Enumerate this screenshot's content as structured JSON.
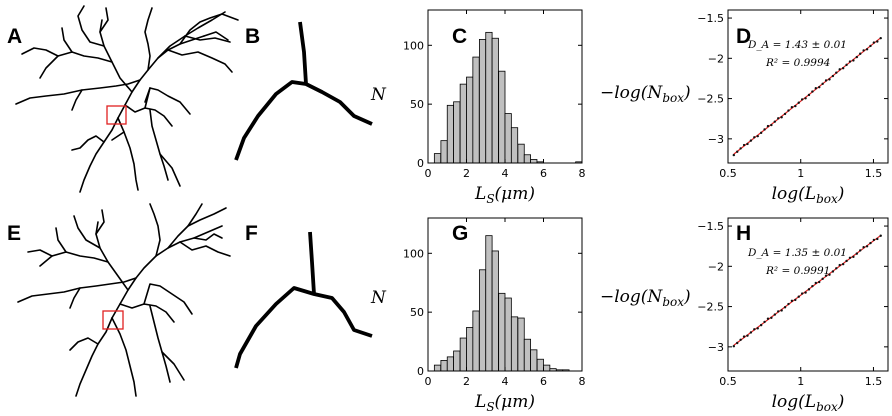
{
  "panel_letters": [
    "A",
    "B",
    "C",
    "D",
    "E",
    "F",
    "G",
    "H"
  ],
  "colors": {
    "box_outline": "#e02020",
    "bar_fill": "#c0c0c0",
    "fit_line": "#e02020",
    "points": "#111111"
  },
  "chart_data": [
    {
      "id": "C",
      "type": "bar",
      "xlabel": "L_S(μm)",
      "ylabel": "N",
      "xlim": [
        0,
        8
      ],
      "ylim": [
        0,
        130
      ],
      "xticks": [
        0,
        2,
        4,
        6,
        8
      ],
      "yticks": [
        0,
        50,
        100
      ],
      "bin_width": 0.33,
      "bin_starts": [
        0.33,
        0.67,
        1.0,
        1.33,
        1.67,
        2.0,
        2.33,
        2.67,
        3.0,
        3.33,
        3.67,
        4.0,
        4.33,
        4.67,
        5.0,
        5.33,
        5.67,
        7.67
      ],
      "values": [
        8,
        19,
        49,
        52,
        67,
        73,
        90,
        105,
        111,
        106,
        78,
        42,
        30,
        16,
        7,
        3,
        1,
        1
      ]
    },
    {
      "id": "D",
      "type": "scatter",
      "xlabel": "log(L_box)",
      "ylabel": "−log(N_box)",
      "xlim": [
        0.5,
        1.6
      ],
      "ylim": [
        -3.3,
        -1.4
      ],
      "xticks": [
        0.5,
        1,
        1.5
      ],
      "yticks": [
        -3,
        -2.5,
        -2,
        -1.5
      ],
      "annotation": {
        "line1": "D_A = 1.43 ± 0.01",
        "line2": "R² = 0.9994"
      },
      "fit": {
        "slope": 1.43,
        "x0": 0.54,
        "y0": -3.19
      },
      "x_range": [
        0.54,
        1.55
      ]
    },
    {
      "id": "G",
      "type": "bar",
      "xlabel": "L_S(μm)",
      "ylabel": "N",
      "xlim": [
        0,
        8
      ],
      "ylim": [
        0,
        130
      ],
      "xticks": [
        0,
        2,
        4,
        6,
        8
      ],
      "yticks": [
        0,
        50,
        100
      ],
      "bin_width": 0.33,
      "bin_starts": [
        0.33,
        0.67,
        1.0,
        1.33,
        1.67,
        2.0,
        2.33,
        2.67,
        3.0,
        3.33,
        3.67,
        4.0,
        4.33,
        4.67,
        5.0,
        5.33,
        5.67,
        6.0,
        6.33,
        6.67,
        7.0
      ],
      "values": [
        5,
        9,
        12,
        17,
        28,
        37,
        51,
        86,
        115,
        102,
        66,
        62,
        46,
        45,
        27,
        18,
        10,
        5,
        2,
        1,
        1
      ]
    },
    {
      "id": "H",
      "type": "scatter",
      "xlabel": "log(L_box)",
      "ylabel": "−log(N_box)",
      "xlim": [
        0.5,
        1.6
      ],
      "ylim": [
        -3.3,
        -1.4
      ],
      "xticks": [
        0.5,
        1,
        1.5
      ],
      "yticks": [
        -3,
        -2.5,
        -2,
        -1.5
      ],
      "annotation": {
        "line1": "D_A = 1.35 ± 0.01",
        "line2": "R² = 0.9991"
      },
      "fit": {
        "slope": 1.35,
        "x0": 0.54,
        "y0": -2.98
      },
      "x_range": [
        0.54,
        1.55
      ]
    }
  ]
}
